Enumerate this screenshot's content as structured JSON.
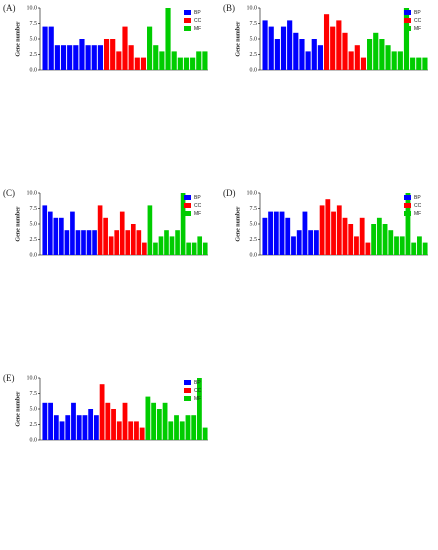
{
  "chart_data": [
    {
      "type": "bar",
      "label": "(A)",
      "y_label": "Gene number",
      "ylim": [
        0,
        10
      ],
      "yticks": [
        {
          "value": 0,
          "label": "0.0"
        },
        2.5,
        {
          "value": 5,
          "label": "5.0"
        },
        7.5,
        {
          "value": 10,
          "label": "10.0"
        }
      ],
      "legend": "top-right",
      "categories": [
        null,
        null,
        null,
        null,
        null,
        null,
        null,
        null,
        null,
        null,
        null,
        null,
        null,
        null,
        null,
        null,
        null,
        null,
        null,
        null,
        null,
        null,
        null,
        null,
        null,
        null,
        null
      ],
      "series": [
        {
          "name": "BP",
          "color": "#0000ff",
          "values": [
            7,
            7,
            4,
            4,
            4,
            4,
            5,
            4,
            4,
            4,
            null,
            null,
            null,
            null,
            null,
            null,
            null,
            null,
            null,
            null,
            null,
            null,
            null,
            null,
            null,
            null,
            null
          ]
        },
        {
          "name": "CC",
          "color": "#ff0000",
          "values": [
            null,
            null,
            null,
            null,
            null,
            null,
            null,
            null,
            null,
            null,
            5,
            5,
            3,
            7,
            4,
            2,
            2,
            null,
            null,
            null,
            null,
            null,
            null,
            null,
            null,
            null,
            null
          ]
        },
        {
          "name": "MF",
          "color": "#00cc00",
          "values": [
            null,
            null,
            null,
            null,
            null,
            null,
            null,
            null,
            null,
            null,
            null,
            null,
            null,
            null,
            null,
            null,
            null,
            7,
            4,
            3,
            10,
            3,
            2,
            2,
            2,
            3,
            3
          ]
        }
      ]
    },
    {
      "type": "bar",
      "label": "(B)",
      "y_label": "Gene number",
      "ylim": [
        0,
        10
      ],
      "yticks": [
        {
          "value": 0,
          "label": "0.0"
        },
        2.5,
        {
          "value": 5,
          "label": "5.0"
        },
        7.5,
        {
          "value": 10,
          "label": "10.0"
        }
      ],
      "legend": "top-right",
      "categories": [
        null,
        null,
        null,
        null,
        null,
        null,
        null,
        null,
        null,
        null,
        null,
        null,
        null,
        null,
        null,
        null,
        null,
        null,
        null,
        null,
        null,
        null,
        null,
        null,
        null,
        null,
        null
      ],
      "series": [
        {
          "name": "BP",
          "color": "#0000ff",
          "values": [
            8,
            7,
            5,
            7,
            8,
            6,
            5,
            3,
            5,
            4,
            null,
            null,
            null,
            null,
            null,
            null,
            null,
            null,
            null,
            null,
            null,
            null,
            null,
            null,
            null,
            null,
            null
          ]
        },
        {
          "name": "CC",
          "color": "#ff0000",
          "values": [
            null,
            null,
            null,
            null,
            null,
            null,
            null,
            null,
            null,
            null,
            9,
            7,
            8,
            6,
            3,
            4,
            2,
            null,
            null,
            null,
            null,
            null,
            null,
            null,
            null,
            null,
            null
          ]
        },
        {
          "name": "MF",
          "color": "#00cc00",
          "values": [
            null,
            null,
            null,
            null,
            null,
            null,
            null,
            null,
            null,
            null,
            null,
            null,
            null,
            null,
            null,
            null,
            null,
            5,
            6,
            5,
            4,
            3,
            3,
            10,
            2,
            2,
            2
          ]
        }
      ]
    },
    {
      "type": "bar",
      "label": "(C)",
      "y_label": "Gene number",
      "ylim": [
        0,
        10
      ],
      "yticks": [
        {
          "value": 0,
          "label": "0.0"
        },
        2.5,
        {
          "value": 5,
          "label": "5.0"
        },
        7.5,
        {
          "value": 10,
          "label": "10.0"
        }
      ],
      "legend": "top-right",
      "categories": [
        null,
        null,
        null,
        null,
        null,
        null,
        null,
        null,
        null,
        null,
        null,
        null,
        null,
        null,
        null,
        null,
        null,
        null,
        null,
        null,
        null,
        null,
        null,
        null,
        null,
        null,
        null,
        null,
        null,
        null
      ],
      "series": [
        {
          "name": "BP",
          "color": "#0000ff",
          "values": [
            8,
            7,
            6,
            6,
            4,
            7,
            4,
            4,
            4,
            4,
            null,
            null,
            null,
            null,
            null,
            null,
            null,
            null,
            null,
            null,
            null,
            null,
            null,
            null,
            null,
            null,
            null,
            null,
            null,
            null
          ]
        },
        {
          "name": "CC",
          "color": "#ff0000",
          "values": [
            null,
            null,
            null,
            null,
            null,
            null,
            null,
            null,
            null,
            null,
            8,
            6,
            3,
            4,
            7,
            4,
            5,
            4,
            2,
            null,
            null,
            null,
            null,
            null,
            null,
            null,
            null,
            null,
            null,
            null
          ]
        },
        {
          "name": "MF",
          "color": "#00cc00",
          "values": [
            null,
            null,
            null,
            null,
            null,
            null,
            null,
            null,
            null,
            null,
            null,
            null,
            null,
            null,
            null,
            null,
            null,
            null,
            null,
            8,
            2,
            3,
            4,
            3,
            4,
            10,
            2,
            2,
            3,
            2
          ]
        }
      ]
    },
    {
      "type": "bar",
      "label": "(D)",
      "y_label": "Gene number",
      "ylim": [
        0,
        10
      ],
      "yticks": [
        {
          "value": 0,
          "label": "0.0"
        },
        2.5,
        {
          "value": 5,
          "label": "5.0"
        },
        7.5,
        {
          "value": 10,
          "label": "10.0"
        }
      ],
      "legend": "top-right",
      "categories": [
        null,
        null,
        null,
        null,
        null,
        null,
        null,
        null,
        null,
        null,
        null,
        null,
        null,
        null,
        null,
        null,
        null,
        null,
        null,
        null,
        null,
        null,
        null,
        null,
        null,
        null,
        null,
        null,
        null
      ],
      "series": [
        {
          "name": "BP",
          "color": "#0000ff",
          "values": [
            6,
            7,
            7,
            7,
            6,
            3,
            4,
            7,
            4,
            4,
            null,
            null,
            null,
            null,
            null,
            null,
            null,
            null,
            null,
            null,
            null,
            null,
            null,
            null,
            null,
            null,
            null,
            null,
            null
          ]
        },
        {
          "name": "CC",
          "color": "#ff0000",
          "values": [
            null,
            null,
            null,
            null,
            null,
            null,
            null,
            null,
            null,
            null,
            8,
            9,
            7,
            8,
            6,
            5,
            3,
            6,
            2,
            null,
            null,
            null,
            null,
            null,
            null,
            null,
            null,
            null,
            null
          ]
        },
        {
          "name": "MF",
          "color": "#00cc00",
          "values": [
            null,
            null,
            null,
            null,
            null,
            null,
            null,
            null,
            null,
            null,
            null,
            null,
            null,
            null,
            null,
            null,
            null,
            null,
            null,
            5,
            6,
            5,
            4,
            3,
            3,
            10,
            2,
            3,
            2
          ]
        }
      ]
    },
    {
      "type": "bar",
      "label": "(E)",
      "y_label": "Gene number",
      "ylim": [
        0,
        10
      ],
      "yticks": [
        {
          "value": 0,
          "label": "0.0"
        },
        2.5,
        {
          "value": 5,
          "label": "5.0"
        },
        7.5,
        {
          "value": 10,
          "label": "10.0"
        }
      ],
      "legend": "top-right",
      "categories": [
        null,
        null,
        null,
        null,
        null,
        null,
        null,
        null,
        null,
        null,
        null,
        null,
        null,
        null,
        null,
        null,
        null,
        null,
        null,
        null,
        null,
        null,
        null,
        null,
        null,
        null,
        null,
        null,
        null
      ],
      "series": [
        {
          "name": "BP",
          "color": "#0000ff",
          "values": [
            6,
            6,
            4,
            3,
            4,
            6,
            4,
            4,
            5,
            4,
            null,
            null,
            null,
            null,
            null,
            null,
            null,
            null,
            null,
            null,
            null,
            null,
            null,
            null,
            null,
            null,
            null,
            null,
            null
          ]
        },
        {
          "name": "CC",
          "color": "#ff0000",
          "values": [
            null,
            null,
            null,
            null,
            null,
            null,
            null,
            null,
            null,
            null,
            9,
            6,
            5,
            3,
            6,
            3,
            3,
            2,
            null,
            null,
            null,
            null,
            null,
            null,
            null,
            null,
            null,
            null,
            null
          ]
        },
        {
          "name": "MF",
          "color": "#00cc00",
          "values": [
            null,
            null,
            null,
            null,
            null,
            null,
            null,
            null,
            null,
            null,
            null,
            null,
            null,
            null,
            null,
            null,
            null,
            null,
            7,
            6,
            5,
            6,
            3,
            4,
            3,
            4,
            4,
            10,
            2
          ]
        }
      ]
    }
  ]
}
